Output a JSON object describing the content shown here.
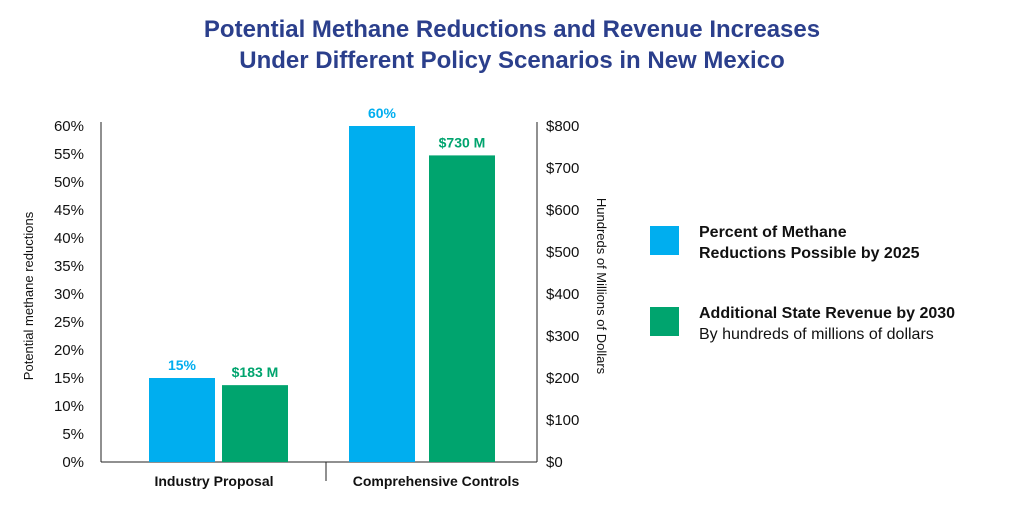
{
  "title_lines": [
    "Potential Methane Reductions and Revenue Increases",
    "Under Different Policy Scenarios in New Mexico"
  ],
  "colors": {
    "methane": "#00aeef",
    "revenue": "#00a46e",
    "title": "#2b3f8c"
  },
  "legend": {
    "items": [
      {
        "line1": "Percent of Methane",
        "line2": "Reductions Possible by 2025",
        "line2_bold": true,
        "color": "#00aeef"
      },
      {
        "line1": "Additional State Revenue by 2030",
        "line2": "By hundreds of millions of dollars",
        "line2_bold": false,
        "color": "#00a46e"
      }
    ]
  },
  "chart_data": {
    "type": "bar",
    "categories": [
      "Industry Proposal",
      "Comprehensive Controls"
    ],
    "series": [
      {
        "name": "Percent of Methane Reductions Possible by 2025",
        "axis": "left",
        "values": [
          15,
          60
        ],
        "labels": [
          "15%",
          "60%"
        ],
        "color": "#00aeef"
      },
      {
        "name": "Additional State Revenue by 2030",
        "axis": "right",
        "values": [
          183,
          730
        ],
        "labels": [
          "$183 M",
          "$730 M"
        ],
        "color": "#00a46e"
      }
    ],
    "ylabel_left": "Potential methane reductions",
    "ylabel_right": "Hundreds of Millions of Dollars",
    "ylim_left": [
      0,
      60
    ],
    "ylim_right": [
      0,
      800
    ],
    "yticks_left": [
      "0%",
      "5%",
      "10%",
      "15%",
      "20%",
      "25%",
      "30%",
      "35%",
      "40%",
      "45%",
      "50%",
      "55%",
      "60%"
    ],
    "yticks_right": [
      "$0",
      "$100",
      "$200",
      "$300",
      "$400",
      "$500",
      "$600",
      "$700",
      "$800"
    ],
    "grid": false,
    "legend_position": "right"
  }
}
